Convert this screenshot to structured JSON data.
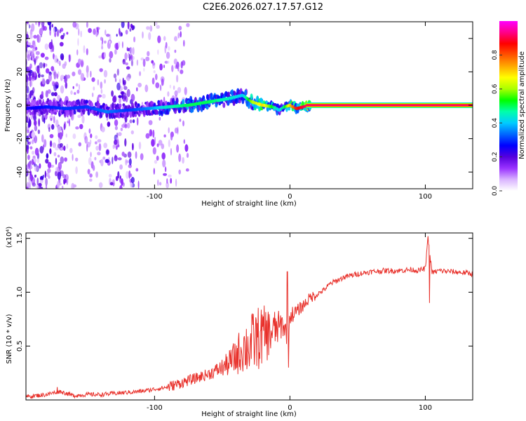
{
  "title": "C2E6.2026.027.17.57.G12",
  "colors": {
    "snr_line": "#e8302a",
    "axis": "#000000"
  },
  "chart_data": [
    {
      "type": "heatmap",
      "name": "spectrogram",
      "xlabel": "Height of straight line (km)",
      "ylabel": "Frequency (Hz)",
      "xlim": [
        -195,
        135
      ],
      "ylim": [
        -50,
        50
      ],
      "x_ticks": [
        -100,
        0,
        100
      ],
      "x_tick_labels": [
        "-100",
        "0",
        "100"
      ],
      "y_ticks": [
        -40,
        -20,
        0,
        20,
        40
      ],
      "y_tick_labels": [
        "-40",
        "-20",
        "0",
        "20",
        "40"
      ],
      "colorbar": {
        "label": "Normalized spectral amplitude",
        "range": [
          0.0,
          1.0
        ],
        "ticks": [
          0.0,
          0.2,
          0.4,
          0.6,
          0.8
        ],
        "tick_labels": [
          "0.0",
          "0.2",
          "0.4",
          "0.6",
          "0.8"
        ],
        "colormap": [
          "#ffffff",
          "#d9b3ff",
          "#9933ff",
          "#5500dd",
          "#0000ff",
          "#0066ff",
          "#00ccff",
          "#00ffaa",
          "#00ff00",
          "#aaff00",
          "#ffff00",
          "#ffaa00",
          "#ff5500",
          "#ff0000",
          "#ff0088",
          "#ff00ff"
        ]
      },
      "ridge": {
        "x": [
          -195,
          -180,
          -165,
          -150,
          -135,
          -120,
          -105,
          -90,
          -75,
          -60,
          -45,
          -35,
          -28,
          -20,
          -12,
          -8,
          -4,
          0,
          5,
          10,
          15,
          135
        ],
        "freq": [
          -2,
          -1,
          -2,
          -1,
          -4,
          -3,
          -2,
          -1,
          0,
          2,
          4,
          6,
          2,
          0,
          -1,
          -3,
          -1,
          0,
          -2,
          -1,
          0,
          0
        ],
        "amplitude": [
          0.25,
          0.28,
          0.3,
          0.3,
          0.35,
          0.3,
          0.35,
          0.45,
          0.5,
          0.5,
          0.45,
          0.4,
          0.6,
          0.7,
          0.5,
          0.4,
          0.5,
          0.7,
          0.85,
          0.9,
          0.92,
          0.92
        ]
      }
    },
    {
      "type": "line",
      "name": "snr",
      "xlabel": "Height of straight line (km)",
      "ylabel": "SNR (10 * v/v)",
      "y_scale_label": "(x10⁴)",
      "xlim": [
        -195,
        135
      ],
      "ylim": [
        0,
        1.55
      ],
      "x_ticks": [
        -100,
        0,
        100
      ],
      "x_tick_labels": [
        "-100",
        "0",
        "100"
      ],
      "y_ticks": [
        0.5,
        1.0,
        1.5
      ],
      "y_tick_labels": [
        "0.5",
        "1.0",
        "1.5"
      ],
      "series": [
        {
          "name": "SNR",
          "x": [
            -195,
            -180,
            -170,
            -160,
            -150,
            -140,
            -130,
            -120,
            -110,
            -100,
            -90,
            -80,
            -70,
            -60,
            -50,
            -45,
            -40,
            -35,
            -30,
            -25,
            -20,
            -15,
            -10,
            -5,
            -2,
            0,
            5,
            10,
            15,
            20,
            25,
            30,
            40,
            50,
            60,
            70,
            80,
            90,
            95,
            100,
            102,
            105,
            110,
            120,
            130,
            135
          ],
          "y": [
            0.03,
            0.05,
            0.08,
            0.04,
            0.05,
            0.05,
            0.06,
            0.07,
            0.08,
            0.1,
            0.12,
            0.16,
            0.2,
            0.24,
            0.3,
            0.34,
            0.4,
            0.48,
            0.5,
            0.56,
            0.6,
            0.62,
            0.66,
            0.7,
            0.6,
            0.78,
            0.82,
            0.88,
            0.95,
            0.98,
            1.02,
            1.08,
            1.14,
            1.17,
            1.19,
            1.2,
            1.2,
            1.21,
            1.2,
            1.22,
            1.5,
            1.18,
            1.2,
            1.19,
            1.18,
            1.17
          ]
        }
      ],
      "spikes": [
        {
          "x": -2,
          "y": 1.19
        },
        {
          "x": -1,
          "y": 0.3
        },
        {
          "x": 102,
          "y": 1.52
        },
        {
          "x": 103,
          "y": 0.9
        },
        {
          "x": -172,
          "y": 0.12
        }
      ]
    }
  ]
}
